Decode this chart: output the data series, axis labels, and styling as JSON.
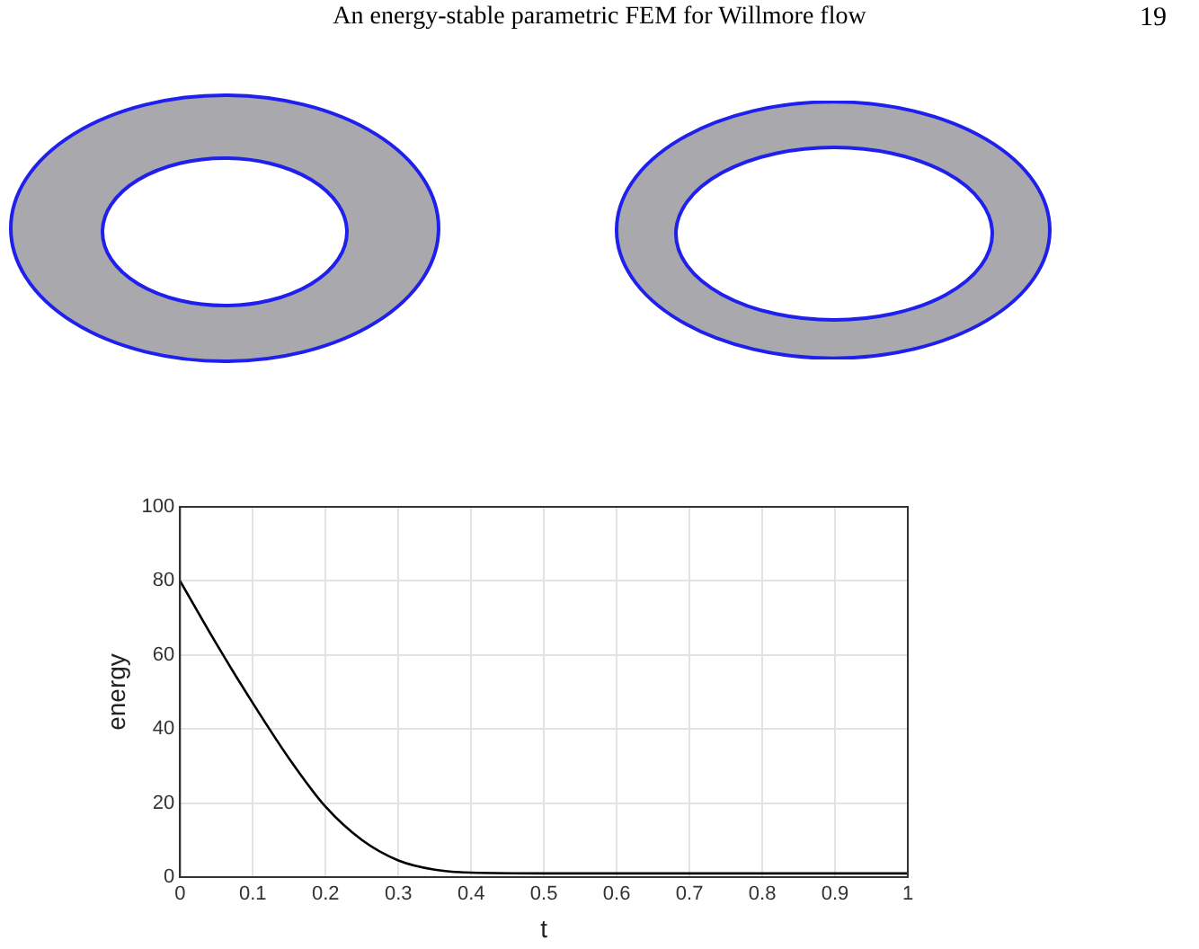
{
  "chart_data": {
    "type": "line",
    "title": "An energy-stable parametric FEM for Willmore flow",
    "annotations": [
      "19"
    ],
    "xlabel": "t",
    "ylabel": "energy",
    "x": [
      0,
      0.05,
      0.1,
      0.15,
      0.2,
      0.25,
      0.3,
      0.35,
      0.4,
      0.5,
      0.6,
      0.7,
      0.8,
      0.9,
      1
    ],
    "series": [
      {
        "color": "#000000",
        "values": [
          80,
          63,
          47,
          32,
          19,
          10,
          4.5,
          2,
          1.2,
          1,
          1,
          1,
          1,
          1,
          1
        ]
      }
    ],
    "xlim": [
      0,
      1
    ],
    "xticks": [
      0,
      0.1,
      0.2,
      0.3,
      0.4,
      0.5,
      0.6,
      0.7,
      0.8,
      0.9,
      1
    ],
    "ylim": [
      0,
      100
    ],
    "yticks": [
      0,
      20,
      40,
      60,
      80,
      100
    ],
    "grid": true,
    "legend": false,
    "marker": "none",
    "line_style": "solid"
  }
}
